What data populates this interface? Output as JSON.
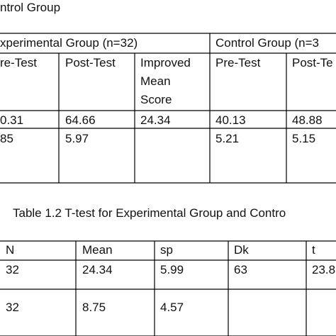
{
  "title": "ntrol Group",
  "table1": {
    "groups": [
      "xperimental Group  (n=32)",
      "Control Group  (n=3"
    ],
    "columns": [
      "re-Test",
      "Post-Test",
      "Improved Mean Score",
      "Pre-Test",
      "Post-Te"
    ],
    "rows": [
      [
        "0.31",
        "64.66",
        "24.34",
        "40.13",
        "48.88"
      ],
      [
        "85",
        "5.97",
        null,
        "5.21",
        "5.15"
      ]
    ]
  },
  "caption": "Table 1.2   T-test for Experimental Group and Contro",
  "table2": {
    "columns": [
      "N",
      "Mean",
      "sp",
      "Dk",
      "t"
    ],
    "rows": [
      [
        "32",
        "24.34",
        "5.99",
        "63",
        "23.8"
      ],
      [
        "32",
        "8.75",
        "4.57",
        null,
        null
      ]
    ]
  }
}
